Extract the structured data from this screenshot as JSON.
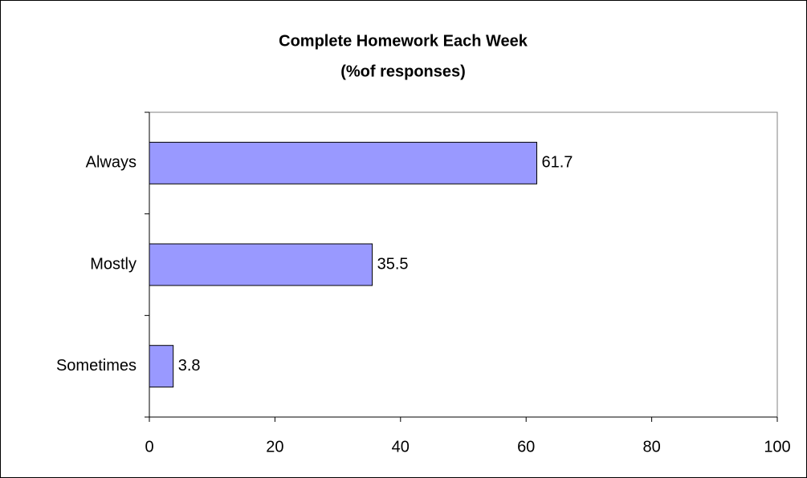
{
  "chart_data": {
    "type": "barh",
    "title": "Complete Homework Each Week",
    "subtitle": "(%of responses)",
    "categories": [
      "Always",
      "Mostly",
      "Sometimes"
    ],
    "values": [
      61.7,
      35.5,
      3.8
    ],
    "color": "#9999ff",
    "xlim": [
      0,
      100
    ],
    "xticks": [
      0,
      20,
      40,
      60,
      80,
      100
    ],
    "grid": false
  }
}
